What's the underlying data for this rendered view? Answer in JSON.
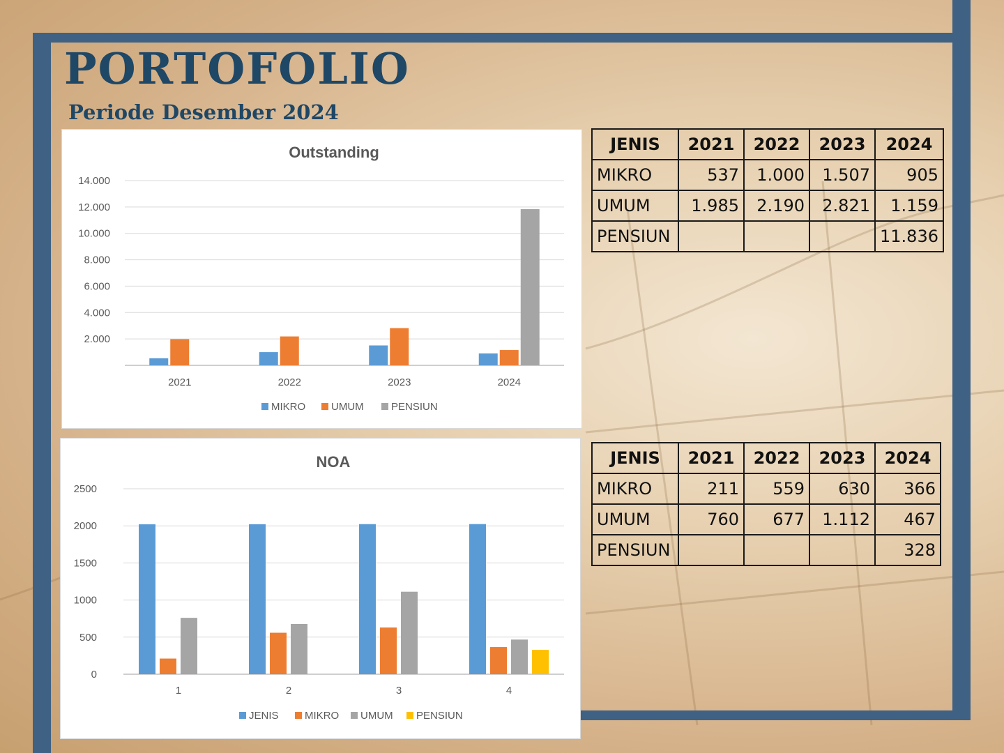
{
  "page": {
    "title": "PORTOFOLIO",
    "subtitle": "Periode Desember 2024"
  },
  "chart_data": [
    {
      "type": "bar",
      "title": "Outstanding",
      "categories": [
        "2021",
        "2022",
        "2023",
        "2024"
      ],
      "series": [
        {
          "name": "MIKRO",
          "color": "#5b9bd5",
          "values": [
            537,
            1000,
            1507,
            905
          ]
        },
        {
          "name": "UMUM",
          "color": "#ed7d31",
          "values": [
            1985,
            2190,
            2821,
            1159
          ]
        },
        {
          "name": "PENSIUN",
          "color": "#a5a5a5",
          "values": [
            0,
            0,
            0,
            11836
          ]
        }
      ],
      "yticks": [
        "14.000",
        "12.000",
        "10.000",
        "8.000",
        "6.000",
        "4.000",
        "2.000"
      ],
      "ylim": [
        0,
        14000
      ],
      "grid": true,
      "legend": "bottom"
    },
    {
      "type": "bar",
      "title": "NOA",
      "categories": [
        "1",
        "2",
        "3",
        "4"
      ],
      "series": [
        {
          "name": "JENIS",
          "color": "#5b9bd5",
          "values": [
            2021,
            2022,
            2023,
            2024
          ]
        },
        {
          "name": "MIKRO",
          "color": "#ed7d31",
          "values": [
            211,
            559,
            630,
            366
          ]
        },
        {
          "name": "UMUM",
          "color": "#a5a5a5",
          "values": [
            760,
            677,
            1112,
            467
          ]
        },
        {
          "name": "PENSIUN",
          "color": "#ffc000",
          "values": [
            0,
            0,
            0,
            328
          ]
        }
      ],
      "yticks": [
        "2500",
        "2000",
        "1500",
        "1000",
        "500",
        "0"
      ],
      "ylim": [
        0,
        2500
      ],
      "grid": true,
      "legend": "bottom"
    }
  ],
  "tables": [
    {
      "headers": [
        "JENIS",
        "2021",
        "2022",
        "2023",
        "2024"
      ],
      "rows": [
        [
          "MIKRO",
          "537",
          "1.000",
          "1.507",
          "905"
        ],
        [
          "UMUM",
          "1.985",
          "2.190",
          "2.821",
          "1.159"
        ],
        [
          "PENSIUN",
          "",
          "",
          "",
          "11.836"
        ]
      ]
    },
    {
      "headers": [
        "JENIS",
        "2021",
        "2022",
        "2023",
        "2024"
      ],
      "rows": [
        [
          "MIKRO",
          "211",
          "559",
          "630",
          "366"
        ],
        [
          "UMUM",
          "760",
          "677",
          "1.112",
          "467"
        ],
        [
          "PENSIUN",
          "",
          "",
          "",
          "328"
        ]
      ]
    }
  ]
}
